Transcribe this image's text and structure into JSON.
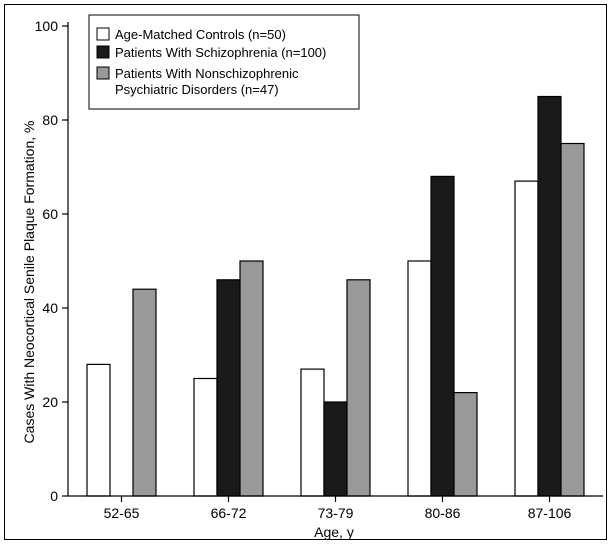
{
  "chart_data": {
    "type": "bar",
    "title": "",
    "xlabel": "Age, y",
    "ylabel": "Cases With Neocortical Senile Plaque Formation, %",
    "ylim": [
      0,
      100
    ],
    "yticks": [
      0,
      20,
      40,
      60,
      80,
      100
    ],
    "categories": [
      "52-65",
      "66-72",
      "73-79",
      "80-86",
      "87-106"
    ],
    "series": [
      {
        "name": "Age-Matched Controls (n=50)",
        "color": "#ffffff",
        "values": [
          28,
          25,
          27,
          50,
          67
        ]
      },
      {
        "name": "Patients With Schizophrenia (n=100)",
        "color": "#1a1a1a",
        "values": [
          0,
          46,
          20,
          68,
          85
        ]
      },
      {
        "name": "Patients With Nonschizophrenic Psychiatric Disorders (n=47)",
        "color": "#999999",
        "values": [
          44,
          50,
          46,
          22,
          75
        ]
      }
    ],
    "legend_position": "top-left",
    "grid": false
  }
}
